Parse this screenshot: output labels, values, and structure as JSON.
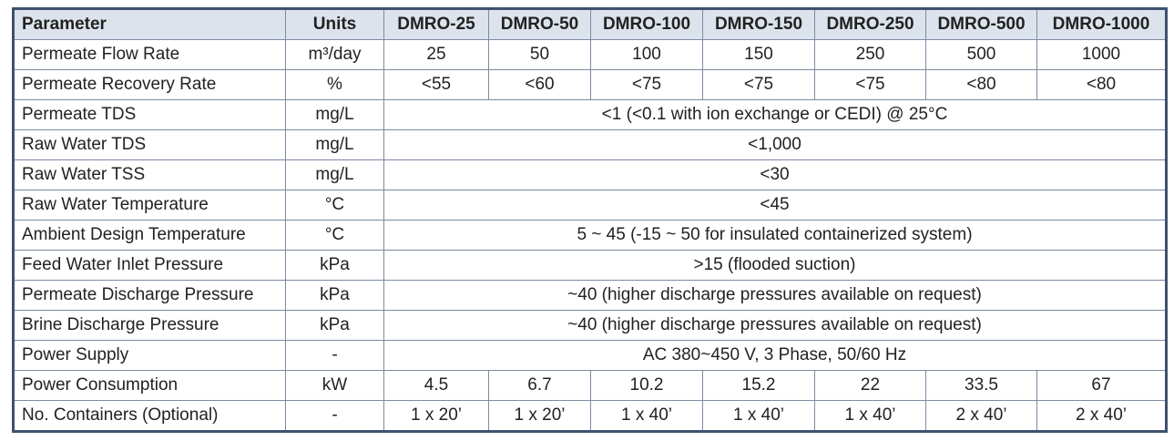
{
  "table": {
    "header": [
      "Parameter",
      "Units",
      "DMRO-25",
      "DMRO-50",
      "DMRO-100",
      "DMRO-150",
      "DMRO-250",
      "DMRO-500",
      "DMRO-1000"
    ],
    "rows": [
      [
        "Permeate Flow Rate",
        "m³/day",
        "25",
        "50",
        "100",
        "150",
        "250",
        "500",
        "1000"
      ],
      [
        "Permeate Recovery Rate",
        "%",
        "<55",
        "<60",
        "<75",
        "<75",
        "<75",
        "<80",
        "<80"
      ],
      [
        "Permeate TDS",
        "mg/L",
        "<1 (<0.1 with ion exchange or CEDI) @ 25°C"
      ],
      [
        "Raw Water TDS",
        "mg/L",
        "<1,000"
      ],
      [
        "Raw Water TSS",
        "mg/L",
        "<30"
      ],
      [
        "Raw Water Temperature",
        "°C",
        "<45"
      ],
      [
        "Ambient Design Temperature",
        "°C",
        "5 ~ 45 (-15 ~ 50 for insulated containerized system)"
      ],
      [
        "Feed Water Inlet Pressure",
        "kPa",
        ">15 (flooded suction)"
      ],
      [
        "Permeate Discharge Pressure",
        "kPa",
        "~40 (higher discharge pressures available on request)"
      ],
      [
        "Brine Discharge Pressure",
        "kPa",
        "~40 (higher discharge pressures available on request)"
      ],
      [
        "Power Supply",
        "-",
        "AC 380~450 V, 3 Phase, 50/60 Hz"
      ],
      [
        "Power Consumption",
        "kW",
        "4.5",
        "6.7",
        "10.2",
        "15.2",
        "22",
        "33.5",
        "67"
      ],
      [
        "No. Containers (Optional)",
        "-",
        "1 x 20’",
        "1 x 20’",
        "1 x 40’",
        "1 x 40’",
        "1 x 40’",
        "2 x 40’",
        "2 x 40’"
      ]
    ]
  }
}
